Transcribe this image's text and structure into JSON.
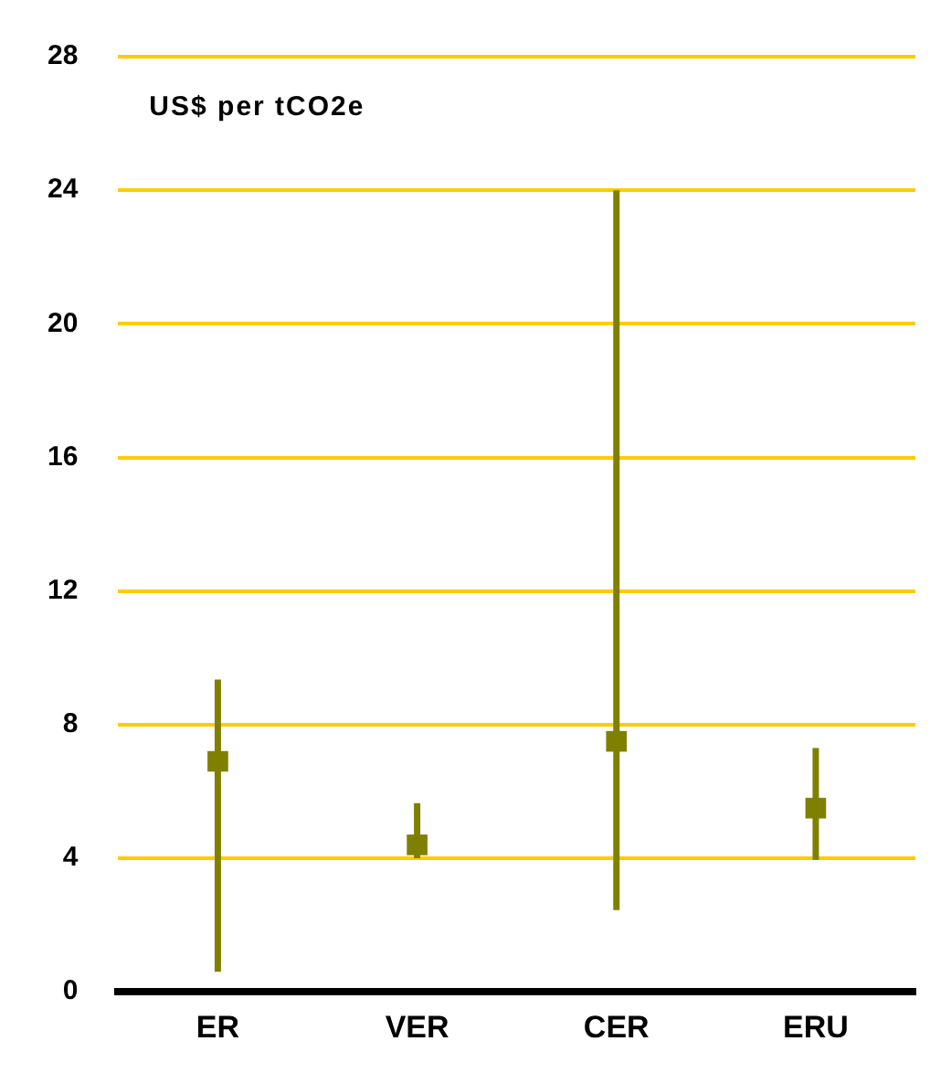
{
  "chart_data": {
    "type": "scatter",
    "ylabel": "US$ per tCO2e",
    "categories": [
      "ER",
      "VER",
      "CER",
      "ERU"
    ],
    "series": [
      {
        "color": "#808000",
        "values": [
          6.9,
          4.4,
          7.5,
          5.5
        ],
        "errors": [
          [
            0.6,
            9.35
          ],
          [
            4.0,
            5.65
          ],
          [
            2.45,
            24.0
          ],
          [
            3.95,
            7.3
          ]
        ]
      }
    ],
    "ylim": [
      0,
      28
    ],
    "yticks": [
      0,
      4,
      8,
      12,
      16,
      20,
      24,
      28
    ],
    "grid": "y",
    "legend": false,
    "marker": "square"
  }
}
